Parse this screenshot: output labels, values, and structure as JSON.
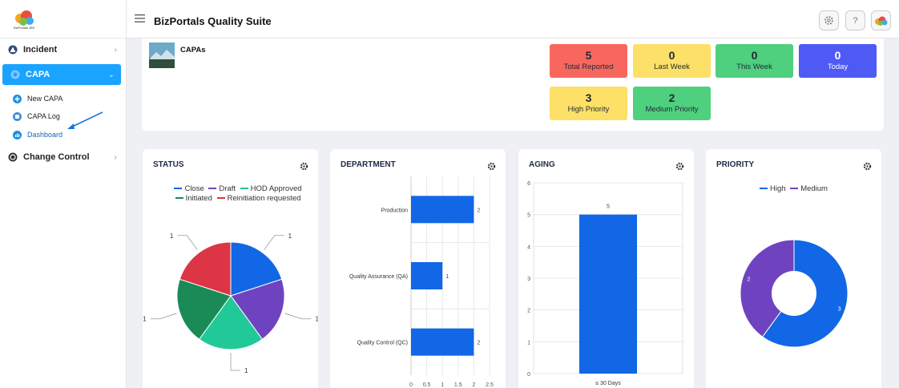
{
  "app": {
    "title": "BizPortals Quality Suite",
    "logo_caption": "BizPortals 365"
  },
  "colors": {
    "accent": "#1aa3ff",
    "chart_blue": "#1167e6",
    "purple": "#6f43c0",
    "teal": "#21c998",
    "green": "#1a8a57",
    "red": "#dc3545"
  },
  "sidebar": {
    "items": [
      {
        "label": "Incident",
        "icon": "incident-icon"
      },
      {
        "label": "CAPA",
        "icon": "capa-icon"
      },
      {
        "label": "Change Control",
        "icon": "change-control-icon"
      }
    ],
    "sub_items": [
      {
        "label": "New CAPA",
        "icon": "plus-circle-icon"
      },
      {
        "label": "CAPA Log",
        "icon": "log-icon"
      },
      {
        "label": "Dashboard",
        "icon": "dashboard-icon"
      }
    ]
  },
  "capa": {
    "title": "CAPAs",
    "tiles": [
      {
        "value": "5",
        "label": "Total Reported",
        "color": "#f8675e"
      },
      {
        "value": "0",
        "label": "Last Week",
        "color": "#fde067"
      },
      {
        "value": "0",
        "label": "This Week",
        "color": "#4fd07e"
      },
      {
        "value": "0",
        "label": "Today",
        "color": "#4f5af5"
      },
      {
        "value": "3",
        "label": "High Priority",
        "color": "#fde067"
      },
      {
        "value": "2",
        "label": "Medium Priority",
        "color": "#4fd07e"
      }
    ]
  },
  "panels": {
    "status": "STATUS",
    "department": "DEPARTMENT",
    "aging": "AGING",
    "priority": "PRIORITY"
  },
  "chart_data": [
    {
      "type": "pie",
      "title": "STATUS",
      "categories": [
        "Close",
        "Draft",
        "HOD Approved",
        "Initiated",
        "Reinitiation requested"
      ],
      "values": [
        1,
        1,
        1,
        1,
        1
      ],
      "colors": [
        "#1167e6",
        "#6f43c0",
        "#21c998",
        "#1a8a57",
        "#dc3545"
      ],
      "legend": "top"
    },
    {
      "type": "bar",
      "orientation": "horizontal",
      "title": "DEPARTMENT",
      "categories": [
        "Production",
        "Quality Assurance (QA)",
        "Quality Control (QC)"
      ],
      "values": [
        2,
        1,
        2
      ],
      "xlim": [
        0,
        2.5
      ],
      "xticks": [
        "0",
        "0.5",
        "1",
        "1.5",
        "2",
        "2.5"
      ],
      "grid": true
    },
    {
      "type": "bar",
      "title": "AGING",
      "categories": [
        "≤ 30 Days"
      ],
      "values": [
        5
      ],
      "ylim": [
        0,
        6
      ],
      "yticks": [
        "0",
        "1",
        "2",
        "3",
        "4",
        "5",
        "6"
      ],
      "grid": true
    },
    {
      "type": "pie",
      "donut": true,
      "title": "PRIORITY",
      "categories": [
        "High",
        "Medium"
      ],
      "values": [
        3,
        2
      ],
      "colors": [
        "#1167e6",
        "#6f43c0"
      ],
      "legend": "top"
    }
  ]
}
